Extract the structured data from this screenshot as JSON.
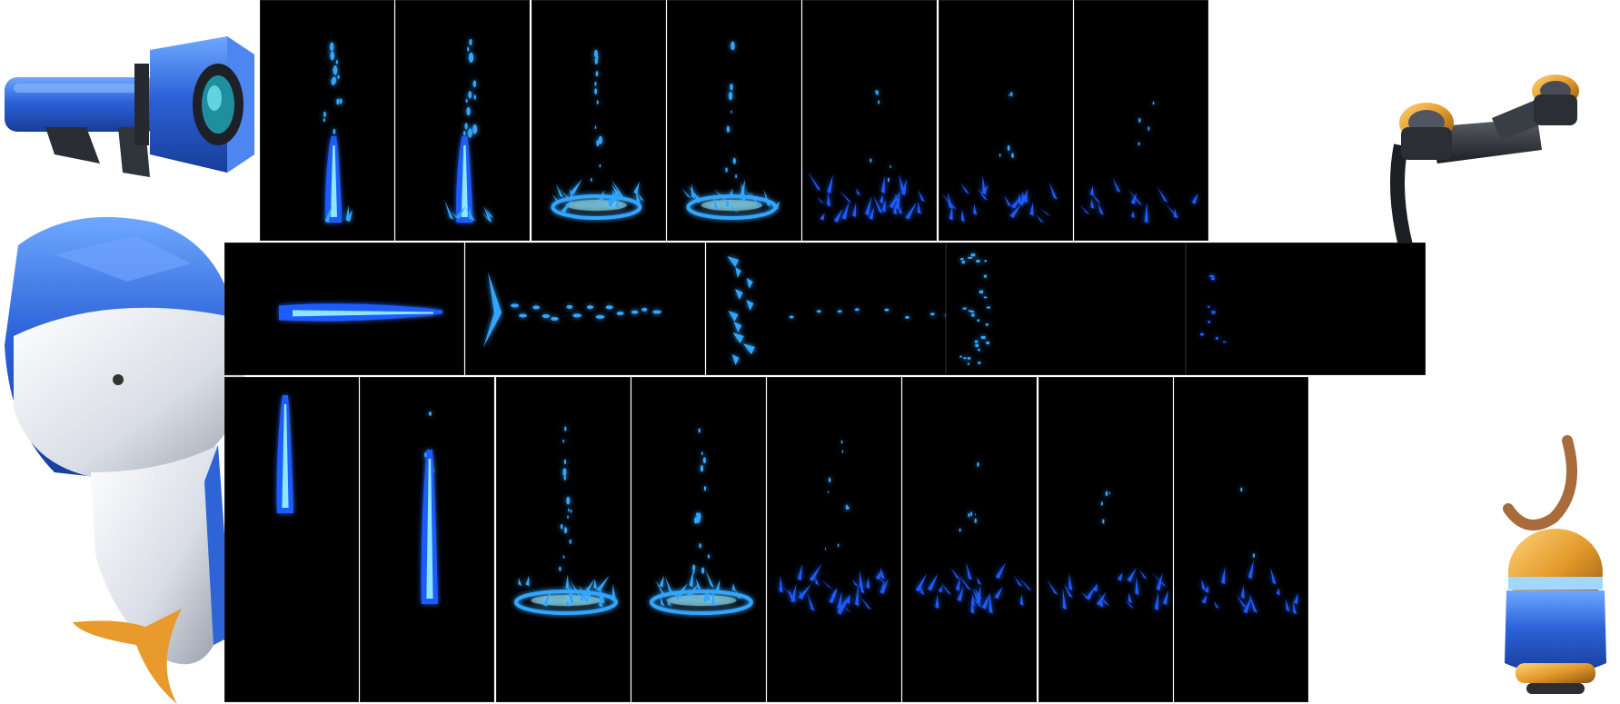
{
  "sheet": {
    "background": "#ffffff",
    "frame_background": "#000000",
    "effect_color_core": "#8fe6ff",
    "effect_color_mid": "#33a6ff",
    "effect_color_outer": "#1f5cff"
  },
  "strips": [
    {
      "name": "vertical-jet-splash-strip-top",
      "frame_count": 7
    },
    {
      "name": "horizontal-jet-strip-middle",
      "frame_count": 5
    },
    {
      "name": "vertical-jet-splash-strip-bottom",
      "frame_count": 8
    }
  ],
  "props": [
    {
      "name": "water-cannon-icon"
    },
    {
      "name": "goggles-headband-icon"
    },
    {
      "name": "dolphin-armor-icon"
    },
    {
      "name": "capsule-pendant-icon"
    }
  ]
}
